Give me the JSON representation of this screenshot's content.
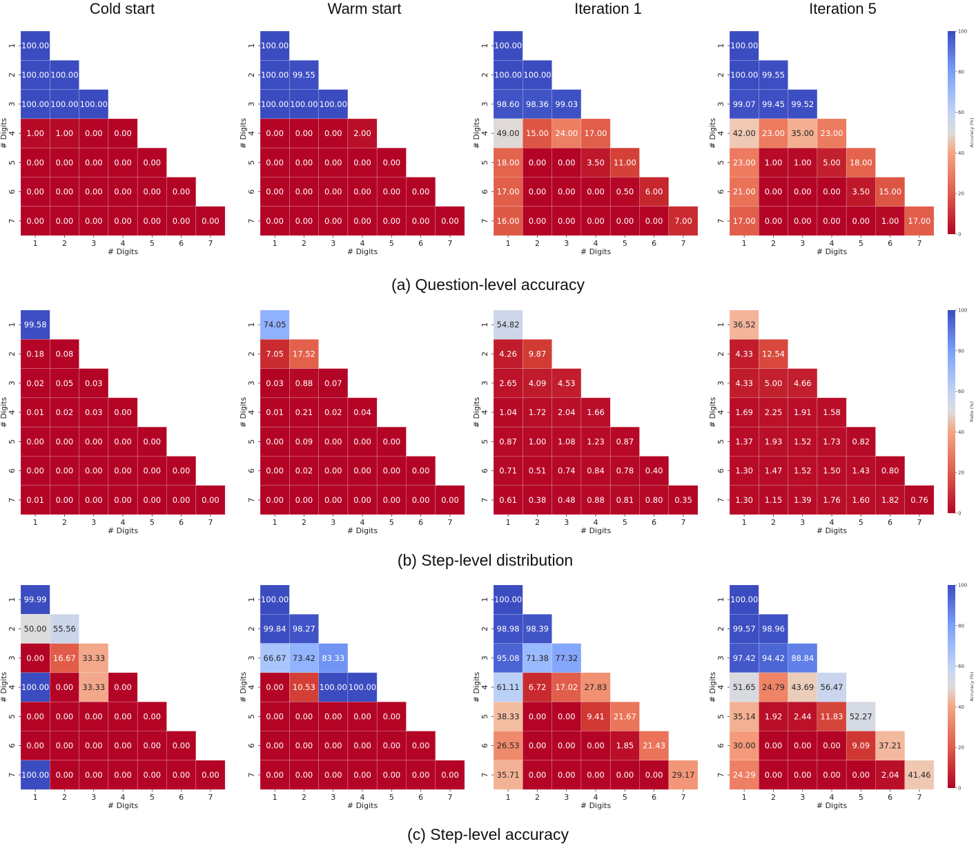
{
  "column_titles": [
    "Cold start",
    "Warm start",
    "Iteration 1",
    "Iteration 5"
  ],
  "row_captions": [
    "(a) Question-level accuracy",
    "(b) Step-level distribution",
    "(c) Step-level accuracy"
  ],
  "colors": {
    "low": "#b40426",
    "mid": "#dddcdc",
    "high": "#3b4cc0"
  },
  "chart_data": [
    {
      "type": "heatmap",
      "row": "(a) Question-level accuracy",
      "colorbar_label": "Accuracy (%)",
      "colorbar_range": [
        0,
        100
      ],
      "colorbar_ticks": [
        0,
        20,
        40,
        60,
        80,
        100
      ],
      "xlabel": "# Digits",
      "ylabel": "# Digits",
      "x_ticks": [
        "1",
        "2",
        "3",
        "4",
        "5",
        "6",
        "7"
      ],
      "y_ticks": [
        "1",
        "2",
        "3",
        "4",
        "5",
        "6",
        "7"
      ],
      "panels": [
        {
          "title": "Cold start",
          "values": [
            [
              "100.00"
            ],
            [
              "100.00",
              "100.00"
            ],
            [
              "100.00",
              "100.00",
              "100.00"
            ],
            [
              "1.00",
              "1.00",
              "0.00",
              "0.00"
            ],
            [
              "0.00",
              "0.00",
              "0.00",
              "0.00",
              "0.00"
            ],
            [
              "0.00",
              "0.00",
              "0.00",
              "0.00",
              "0.00",
              "0.00"
            ],
            [
              "0.00",
              "0.00",
              "0.00",
              "0.00",
              "0.00",
              "0.00",
              "0.00"
            ]
          ]
        },
        {
          "title": "Warm start",
          "values": [
            [
              "100.00"
            ],
            [
              "100.00",
              "99.55"
            ],
            [
              "100.00",
              "100.00",
              "100.00"
            ],
            [
              "0.00",
              "0.00",
              "0.00",
              "2.00"
            ],
            [
              "0.00",
              "0.00",
              "0.00",
              "0.00",
              "0.00"
            ],
            [
              "0.00",
              "0.00",
              "0.00",
              "0.00",
              "0.00",
              "0.00"
            ],
            [
              "0.00",
              "0.00",
              "0.00",
              "0.00",
              "0.00",
              "0.00",
              "0.00"
            ]
          ]
        },
        {
          "title": "Iteration 1",
          "values": [
            [
              "100.00"
            ],
            [
              "100.00",
              "100.00"
            ],
            [
              "98.60",
              "98.36",
              "99.03"
            ],
            [
              "49.00",
              "15.00",
              "24.00",
              "17.00"
            ],
            [
              "18.00",
              "0.00",
              "0.00",
              "3.50",
              "11.00"
            ],
            [
              "17.00",
              "0.00",
              "0.00",
              "0.00",
              "0.50",
              "6.00"
            ],
            [
              "16.00",
              "0.00",
              "0.00",
              "0.00",
              "0.00",
              "0.00",
              "7.00"
            ]
          ]
        },
        {
          "title": "Iteration 5",
          "values": [
            [
              "100.00"
            ],
            [
              "100.00",
              "99.55"
            ],
            [
              "99.07",
              "99.45",
              "99.52"
            ],
            [
              "42.00",
              "23.00",
              "35.00",
              "23.00"
            ],
            [
              "23.00",
              "1.00",
              "1.00",
              "5.00",
              "18.00"
            ],
            [
              "21.00",
              "0.00",
              "0.00",
              "0.00",
              "3.50",
              "15.00"
            ],
            [
              "17.00",
              "0.00",
              "0.00",
              "0.00",
              "0.00",
              "1.00",
              "17.00"
            ]
          ]
        }
      ]
    },
    {
      "type": "heatmap",
      "row": "(b) Step-level distribution",
      "colorbar_label": "Ratio (%)",
      "colorbar_range": [
        0,
        100
      ],
      "colorbar_ticks": [
        0,
        20,
        40,
        60,
        80,
        100
      ],
      "xlabel": "# Digits",
      "ylabel": "# Digits",
      "x_ticks": [
        "1",
        "2",
        "3",
        "4",
        "5",
        "6",
        "7"
      ],
      "y_ticks": [
        "1",
        "2",
        "3",
        "4",
        "5",
        "6",
        "7"
      ],
      "panels": [
        {
          "title": "Cold start",
          "values": [
            [
              "99.58"
            ],
            [
              "0.18",
              "0.08"
            ],
            [
              "0.02",
              "0.05",
              "0.03"
            ],
            [
              "0.01",
              "0.02",
              "0.03",
              "0.00"
            ],
            [
              "0.00",
              "0.00",
              "0.00",
              "0.00",
              "0.00"
            ],
            [
              "0.00",
              "0.00",
              "0.00",
              "0.00",
              "0.00",
              "0.00"
            ],
            [
              "0.01",
              "0.00",
              "0.00",
              "0.00",
              "0.00",
              "0.00",
              "0.00"
            ]
          ]
        },
        {
          "title": "Warm start",
          "values": [
            [
              "74.05"
            ],
            [
              "7.05",
              "17.52"
            ],
            [
              "0.03",
              "0.88",
              "0.07"
            ],
            [
              "0.01",
              "0.21",
              "0.02",
              "0.04"
            ],
            [
              "0.00",
              "0.09",
              "0.00",
              "0.00",
              "0.00"
            ],
            [
              "0.00",
              "0.02",
              "0.00",
              "0.00",
              "0.00",
              "0.00"
            ],
            [
              "0.00",
              "0.00",
              "0.00",
              "0.00",
              "0.00",
              "0.00",
              "0.00"
            ]
          ]
        },
        {
          "title": "Iteration 1",
          "values": [
            [
              "54.82"
            ],
            [
              "4.26",
              "9.87"
            ],
            [
              "2.65",
              "4.09",
              "4.53"
            ],
            [
              "1.04",
              "1.72",
              "2.04",
              "1.66"
            ],
            [
              "0.87",
              "1.00",
              "1.08",
              "1.23",
              "0.87"
            ],
            [
              "0.71",
              "0.51",
              "0.74",
              "0.84",
              "0.78",
              "0.40"
            ],
            [
              "0.61",
              "0.38",
              "0.48",
              "0.88",
              "0.81",
              "0.80",
              "0.35"
            ]
          ]
        },
        {
          "title": "Iteration 5",
          "values": [
            [
              "36.52"
            ],
            [
              "4.33",
              "12.54"
            ],
            [
              "4.33",
              "5.00",
              "4.66"
            ],
            [
              "1.69",
              "2.25",
              "1.91",
              "1.58"
            ],
            [
              "1.37",
              "1.93",
              "1.52",
              "1.73",
              "0.82"
            ],
            [
              "1.30",
              "1.47",
              "1.52",
              "1.50",
              "1.43",
              "0.80"
            ],
            [
              "1.30",
              "1.15",
              "1.39",
              "1.76",
              "1.60",
              "1.82",
              "0.76"
            ]
          ]
        }
      ]
    },
    {
      "type": "heatmap",
      "row": "(c) Step-level accuracy",
      "colorbar_label": "Accuracy (%)",
      "colorbar_range": [
        0,
        100
      ],
      "colorbar_ticks": [
        0,
        20,
        40,
        60,
        80,
        100
      ],
      "xlabel": "# Digits",
      "ylabel": "# Digits",
      "x_ticks": [
        "1",
        "2",
        "3",
        "4",
        "5",
        "6",
        "7"
      ],
      "y_ticks": [
        "1",
        "2",
        "3",
        "4",
        "5",
        "6",
        "7"
      ],
      "panels": [
        {
          "title": "Cold start",
          "values": [
            [
              "99.99"
            ],
            [
              "50.00",
              "55.56"
            ],
            [
              "0.00",
              "16.67",
              "33.33"
            ],
            [
              "100.00",
              "0.00",
              "33.33",
              "0.00"
            ],
            [
              "0.00",
              "0.00",
              "0.00",
              "0.00",
              "0.00"
            ],
            [
              "0.00",
              "0.00",
              "0.00",
              "0.00",
              "0.00",
              "0.00"
            ],
            [
              "100.00",
              "0.00",
              "0.00",
              "0.00",
              "0.00",
              "0.00",
              "0.00"
            ]
          ]
        },
        {
          "title": "Warm start",
          "values": [
            [
              "100.00"
            ],
            [
              "99.84",
              "98.27"
            ],
            [
              "66.67",
              "73.42",
              "83.33"
            ],
            [
              "0.00",
              "10.53",
              "100.00",
              "100.00"
            ],
            [
              "0.00",
              "0.00",
              "0.00",
              "0.00",
              "0.00"
            ],
            [
              "0.00",
              "0.00",
              "0.00",
              "0.00",
              "0.00",
              "0.00"
            ],
            [
              "0.00",
              "0.00",
              "0.00",
              "0.00",
              "0.00",
              "0.00",
              "0.00"
            ]
          ]
        },
        {
          "title": "Iteration 1",
          "values": [
            [
              "100.00"
            ],
            [
              "98.98",
              "98.39"
            ],
            [
              "95.08",
              "71.38",
              "77.32"
            ],
            [
              "61.11",
              "6.72",
              "17.02",
              "27.83"
            ],
            [
              "38.33",
              "0.00",
              "0.00",
              "9.41",
              "21.67"
            ],
            [
              "26.53",
              "0.00",
              "0.00",
              "0.00",
              "1.85",
              "21.43"
            ],
            [
              "35.71",
              "0.00",
              "0.00",
              "0.00",
              "0.00",
              "0.00",
              "29.17"
            ]
          ]
        },
        {
          "title": "Iteration 5",
          "values": [
            [
              "100.00"
            ],
            [
              "99.57",
              "98.96"
            ],
            [
              "97.42",
              "94.42",
              "88.84"
            ],
            [
              "51.65",
              "24.79",
              "43.69",
              "56.47"
            ],
            [
              "35.14",
              "1.92",
              "2.44",
              "11.83",
              "52.27"
            ],
            [
              "30.00",
              "0.00",
              "0.00",
              "0.00",
              "9.09",
              "37.21"
            ],
            [
              "24.29",
              "0.00",
              "0.00",
              "0.00",
              "0.00",
              "2.04",
              "41.46"
            ]
          ]
        }
      ]
    }
  ]
}
